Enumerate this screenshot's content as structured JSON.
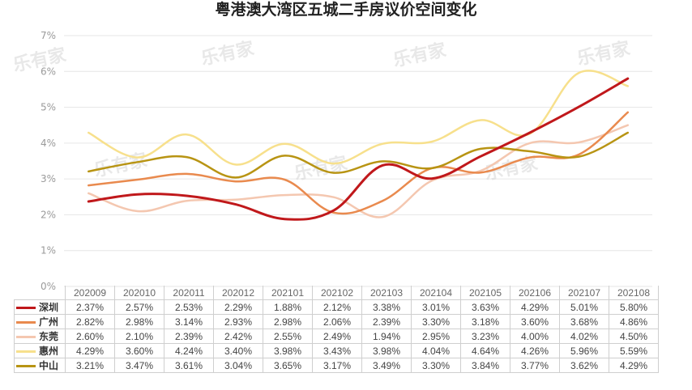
{
  "chart_data": {
    "type": "line",
    "title": "粤港澳大湾区五城二手房议价空间变化",
    "categories": [
      "202009",
      "202010",
      "202011",
      "202012",
      "202101",
      "202102",
      "202103",
      "202104",
      "202105",
      "202106",
      "202107",
      "202108"
    ],
    "y_ticks": [
      "0%",
      "1%",
      "2%",
      "3%",
      "4%",
      "5%",
      "6%",
      "7%"
    ],
    "ylim": [
      0,
      7
    ],
    "grid": true,
    "legend": "data-table-bottom",
    "series": [
      {
        "name": "深圳",
        "color": "#c0181b",
        "values": [
          2.37,
          2.57,
          2.53,
          2.29,
          1.88,
          2.12,
          3.38,
          3.01,
          3.63,
          4.29,
          5.01,
          5.8
        ],
        "labels": [
          "2.37%",
          "2.57%",
          "2.53%",
          "2.29%",
          "1.88%",
          "2.12%",
          "3.38%",
          "3.01%",
          "3.63%",
          "4.29%",
          "5.01%",
          "5.80%"
        ]
      },
      {
        "name": "广州",
        "color": "#e98a4e",
        "values": [
          2.82,
          2.98,
          3.14,
          2.93,
          2.98,
          2.06,
          2.39,
          3.3,
          3.18,
          3.6,
          3.68,
          4.86
        ],
        "labels": [
          "2.82%",
          "2.98%",
          "3.14%",
          "2.93%",
          "2.98%",
          "2.06%",
          "2.39%",
          "3.30%",
          "3.18%",
          "3.60%",
          "3.68%",
          "4.86%"
        ]
      },
      {
        "name": "东莞",
        "color": "#f4c7b0",
        "values": [
          2.6,
          2.1,
          2.39,
          2.42,
          2.55,
          2.49,
          1.94,
          2.95,
          3.23,
          4.0,
          4.02,
          4.5
        ],
        "labels": [
          "2.60%",
          "2.10%",
          "2.39%",
          "2.42%",
          "2.55%",
          "2.49%",
          "1.94%",
          "2.95%",
          "3.23%",
          "4.00%",
          "4.02%",
          "4.50%"
        ]
      },
      {
        "name": "惠州",
        "color": "#f7e08c",
        "values": [
          4.29,
          3.6,
          4.24,
          3.4,
          3.98,
          3.43,
          3.98,
          4.04,
          4.64,
          4.26,
          5.96,
          5.59
        ],
        "labels": [
          "4.29%",
          "3.60%",
          "4.24%",
          "3.40%",
          "3.98%",
          "3.43%",
          "3.98%",
          "4.04%",
          "4.64%",
          "4.26%",
          "5.96%",
          "5.59%"
        ]
      },
      {
        "name": "中山",
        "color": "#b89413",
        "values": [
          3.21,
          3.47,
          3.61,
          3.04,
          3.65,
          3.17,
          3.49,
          3.3,
          3.84,
          3.77,
          3.62,
          4.29
        ],
        "labels": [
          "3.21%",
          "3.47%",
          "3.61%",
          "3.04%",
          "3.65%",
          "3.17%",
          "3.49%",
          "3.30%",
          "3.84%",
          "3.77%",
          "3.62%",
          "4.29%"
        ]
      }
    ]
  },
  "watermark": "乐有家"
}
